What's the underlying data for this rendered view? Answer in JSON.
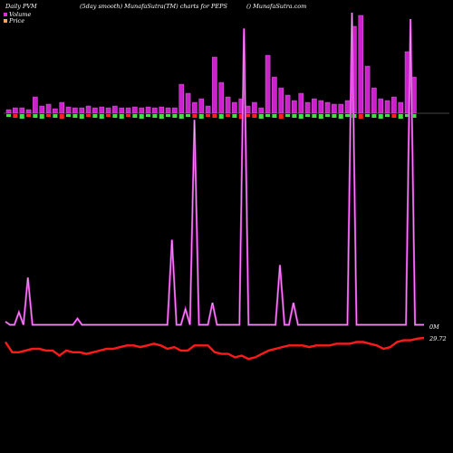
{
  "header": {
    "left": "Daily PVM",
    "middle": "(5day smooth) MunafaSutra(TM) charts for PEPS",
    "right": "() MunafaSutra.com"
  },
  "legend": [
    {
      "label": "Volume",
      "color": "#d633d6"
    },
    {
      "label": "Price",
      "color": "#f4a460"
    }
  ],
  "colors": {
    "volume_line": "#d633d6",
    "price_line": "#ff1a1a",
    "bar_up": "#44dd44",
    "bar_down": "#ff2222",
    "bar_volume": "#cc22cc",
    "baseline": "#888888"
  },
  "chart_data": {
    "type": "line",
    "volume_axis_label": "0M",
    "price_axis_label": "29.72",
    "volume": [
      2,
      1,
      1,
      5,
      1,
      16,
      1,
      1,
      1,
      1,
      1,
      1,
      1,
      1,
      1,
      1,
      3,
      1,
      1,
      1,
      1,
      1,
      1,
      1,
      1,
      1,
      1,
      1,
      1,
      1,
      1,
      1,
      1,
      1,
      1,
      1,
      1,
      28,
      1,
      1,
      6,
      1,
      66,
      1,
      1,
      1,
      8,
      1,
      1,
      1,
      1,
      1,
      1,
      95,
      1,
      1,
      1,
      1,
      1,
      1,
      1,
      20,
      1,
      1,
      8,
      1,
      1,
      1,
      1,
      1,
      1,
      1,
      1,
      1,
      1,
      1,
      1,
      100,
      1,
      1,
      1,
      1,
      1,
      1,
      1,
      1,
      1,
      1,
      1,
      1,
      98,
      1,
      1,
      1
    ],
    "price": [
      29.6,
      29.3,
      29.3,
      29.35,
      29.4,
      29.4,
      29.35,
      29.35,
      29.2,
      29.35,
      29.3,
      29.3,
      29.25,
      29.3,
      29.35,
      29.4,
      29.4,
      29.45,
      29.5,
      29.5,
      29.45,
      29.5,
      29.55,
      29.5,
      29.4,
      29.45,
      29.35,
      29.35,
      29.5,
      29.5,
      29.5,
      29.3,
      29.25,
      29.25,
      29.15,
      29.2,
      29.1,
      29.15,
      29.25,
      29.35,
      29.4,
      29.45,
      29.5,
      29.5,
      29.5,
      29.45,
      29.5,
      29.5,
      29.5,
      29.55,
      29.55,
      29.55,
      29.6,
      29.6,
      29.55,
      29.5,
      29.4,
      29.45,
      29.6,
      29.65,
      29.65,
      29.7,
      29.72
    ],
    "bars": [
      {
        "h": 4,
        "c": "g"
      },
      {
        "h": 6,
        "c": "r"
      },
      {
        "h": 6,
        "c": "g"
      },
      {
        "h": 4,
        "c": "r"
      },
      {
        "h": 18,
        "c": "g"
      },
      {
        "h": 8,
        "c": "g"
      },
      {
        "h": 10,
        "c": "r"
      },
      {
        "h": 5,
        "c": "g"
      },
      {
        "h": 12,
        "c": "r"
      },
      {
        "h": 7,
        "c": "g"
      },
      {
        "h": 6,
        "c": "g"
      },
      {
        "h": 6,
        "c": "g"
      },
      {
        "h": 8,
        "c": "r"
      },
      {
        "h": 6,
        "c": "g"
      },
      {
        "h": 7,
        "c": "g"
      },
      {
        "h": 6,
        "c": "r"
      },
      {
        "h": 8,
        "c": "g"
      },
      {
        "h": 6,
        "c": "g"
      },
      {
        "h": 6,
        "c": "r"
      },
      {
        "h": 7,
        "c": "g"
      },
      {
        "h": 6,
        "c": "g"
      },
      {
        "h": 7,
        "c": "g"
      },
      {
        "h": 6,
        "c": "g"
      },
      {
        "h": 7,
        "c": "g"
      },
      {
        "h": 6,
        "c": "g"
      },
      {
        "h": 6,
        "c": "g"
      },
      {
        "h": 32,
        "c": "g"
      },
      {
        "h": 22,
        "c": "g"
      },
      {
        "h": 12,
        "c": "r"
      },
      {
        "h": 16,
        "c": "g"
      },
      {
        "h": 8,
        "c": "r"
      },
      {
        "h": 62,
        "c": "r"
      },
      {
        "h": 34,
        "c": "g"
      },
      {
        "h": 18,
        "c": "r"
      },
      {
        "h": 12,
        "c": "g"
      },
      {
        "h": 16,
        "c": "r"
      },
      {
        "h": 8,
        "c": "r"
      },
      {
        "h": 12,
        "c": "r"
      },
      {
        "h": 6,
        "c": "g"
      },
      {
        "h": 64,
        "c": "g"
      },
      {
        "h": 40,
        "c": "g"
      },
      {
        "h": 28,
        "c": "r"
      },
      {
        "h": 20,
        "c": "g"
      },
      {
        "h": 14,
        "c": "g"
      },
      {
        "h": 22,
        "c": "g"
      },
      {
        "h": 12,
        "c": "g"
      },
      {
        "h": 16,
        "c": "g"
      },
      {
        "h": 14,
        "c": "g"
      },
      {
        "h": 12,
        "c": "g"
      },
      {
        "h": 10,
        "c": "g"
      },
      {
        "h": 10,
        "c": "g"
      },
      {
        "h": 14,
        "c": "g"
      },
      {
        "h": 96,
        "c": "g"
      },
      {
        "h": 108,
        "c": "r"
      },
      {
        "h": 52,
        "c": "g"
      },
      {
        "h": 28,
        "c": "g"
      },
      {
        "h": 16,
        "c": "g"
      },
      {
        "h": 14,
        "c": "g"
      },
      {
        "h": 18,
        "c": "r"
      },
      {
        "h": 12,
        "c": "g"
      },
      {
        "h": 68,
        "c": "g"
      },
      {
        "h": 40,
        "c": "g"
      },
      {
        "h": 0,
        "c": "g"
      }
    ]
  }
}
